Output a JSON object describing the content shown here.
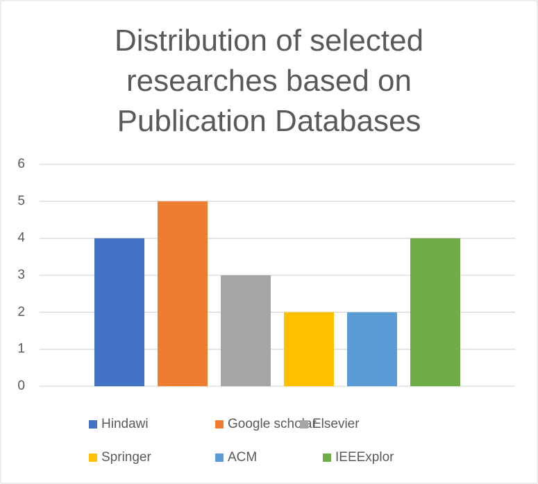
{
  "chart_data": {
    "type": "bar",
    "title": "Distribution of selected researches based on Publication Databases",
    "categories": [
      null
    ],
    "series": [
      {
        "name": "Hindawi",
        "color": "#4472c4",
        "values": [
          4
        ]
      },
      {
        "name": "Google scholar",
        "color": "#ed7d31",
        "values": [
          5
        ]
      },
      {
        "name": "Elsevier",
        "color": "#a5a5a5",
        "values": [
          3
        ]
      },
      {
        "name": "Springer",
        "color": "#ffc000",
        "values": [
          2
        ]
      },
      {
        "name": "ACM",
        "color": "#5b9bd5",
        "values": [
          2
        ]
      },
      {
        "name": "IEEExplor",
        "color": "#70ad47",
        "values": [
          4
        ]
      }
    ],
    "ylim": [
      0,
      6
    ],
    "yticks": [
      0,
      1,
      2,
      3,
      4,
      5,
      6
    ],
    "grid": true,
    "legend": "bottom"
  }
}
